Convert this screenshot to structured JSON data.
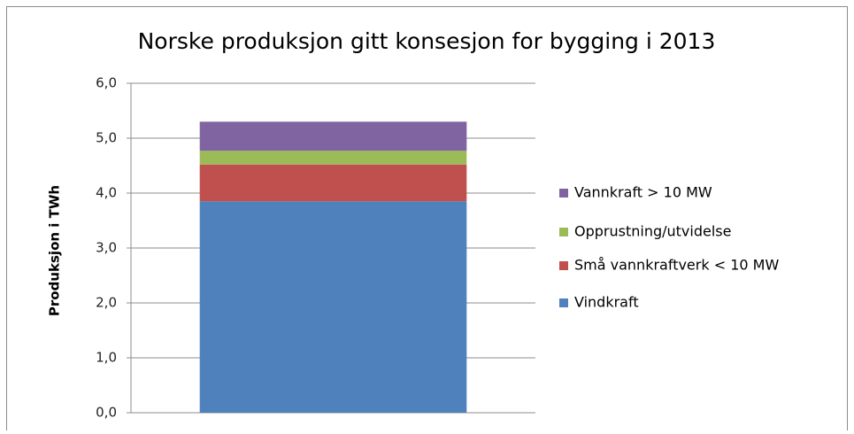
{
  "chart_data": {
    "type": "stacked_bar",
    "title": "Norske produksjon gitt konsesjon for bygging i 2013",
    "y_label": "Produksjon i TWh",
    "categories": [
      null
    ],
    "series": [
      {
        "name": "Vindkraft",
        "color": "#4f81bd",
        "values": [
          3.85
        ]
      },
      {
        "name": "Små vannkraftverk < 10 MW",
        "color": "#c0504d",
        "values": [
          0.67
        ]
      },
      {
        "name": "Opprustning/utvidelse",
        "color": "#9bbb59",
        "values": [
          0.25
        ]
      },
      {
        "name": "Vannkraft > 10 MW",
        "color": "#8064a2",
        "values": [
          0.53
        ]
      }
    ],
    "ylim": [
      0,
      6
    ],
    "yticks": [
      {
        "value": 0,
        "label": "0,0"
      },
      {
        "value": 1,
        "label": "1,0"
      },
      {
        "value": 2,
        "label": "2,0"
      },
      {
        "value": 3,
        "label": "3,0"
      },
      {
        "value": 4,
        "label": "4,0"
      },
      {
        "value": 5,
        "label": "5,0"
      },
      {
        "value": 6,
        "label": "6,0"
      }
    ],
    "grid": true,
    "legend": "right"
  }
}
